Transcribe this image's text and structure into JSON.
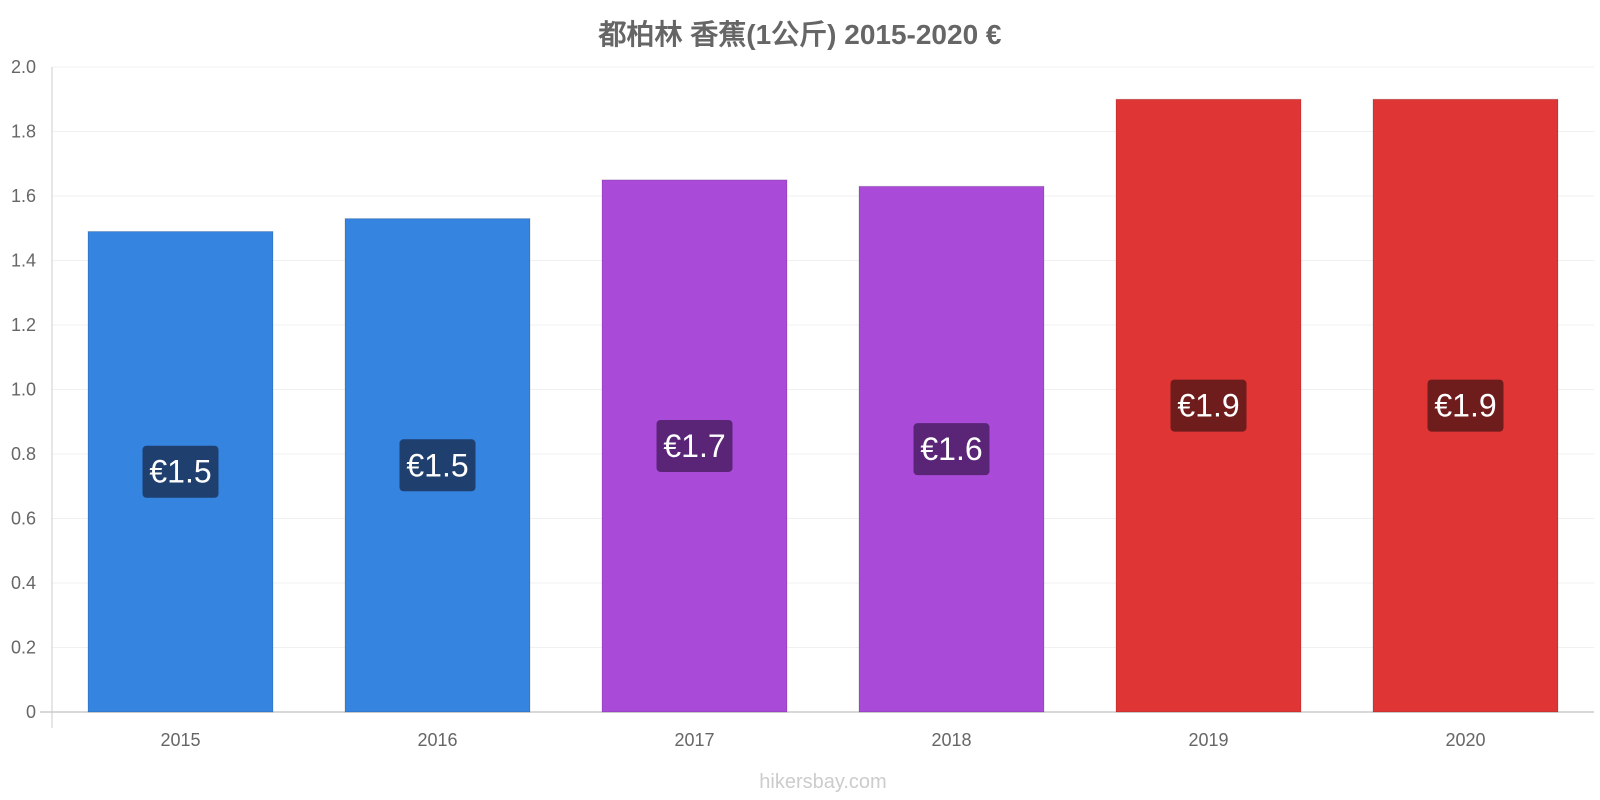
{
  "chart_data": {
    "type": "bar",
    "title": "都柏林 香蕉(1公斤) 2015-2020 €",
    "xlabel": "",
    "ylabel": "",
    "ylim": [
      0,
      2.0
    ],
    "yticks": [
      0,
      0.2,
      0.4,
      0.6,
      0.8,
      1.0,
      1.2,
      1.4,
      1.6,
      1.8,
      2.0
    ],
    "ytick_labels": [
      "0",
      "0.2",
      "0.4",
      "0.6",
      "0.8",
      "1.0",
      "1.2",
      "1.4",
      "1.6",
      "1.8",
      "2.0"
    ],
    "grid": true,
    "categories": [
      "2015",
      "2016",
      "2017",
      "2018",
      "2019",
      "2020"
    ],
    "values": [
      1.49,
      1.53,
      1.65,
      1.63,
      1.9,
      1.9
    ],
    "data_labels": [
      "€1.5",
      "€1.5",
      "€1.7",
      "€1.6",
      "€1.9",
      "€1.9"
    ],
    "bar_colors": [
      "#3584e0",
      "#3584e0",
      "#a94ad8",
      "#a94ad8",
      "#e03535",
      "#e03535"
    ],
    "label_bg_colors": [
      "#1f3f6e",
      "#1f3f6e",
      "#5a2577",
      "#5a2577",
      "#6e1c1c",
      "#6e1c1c"
    ]
  },
  "watermark": "hikersbay.com"
}
